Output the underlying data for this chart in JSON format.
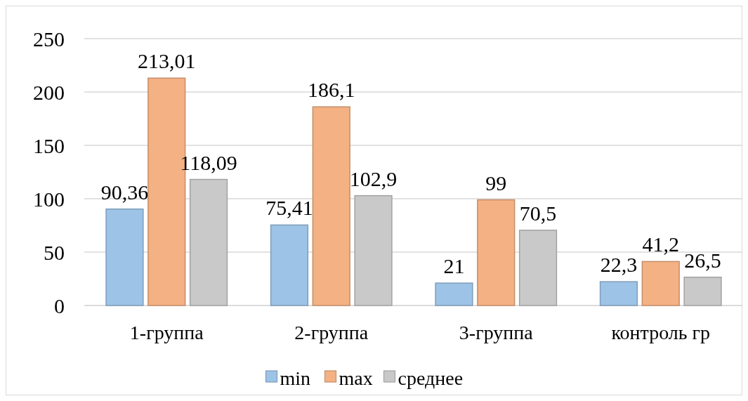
{
  "chart_data": {
    "type": "bar",
    "categories": [
      "1-группа",
      "2-группа",
      "3-группа",
      "контроль гр"
    ],
    "series": [
      {
        "name": "min",
        "color": "#9dc3e6",
        "values": [
          90.36,
          75.41,
          21,
          22.3
        ],
        "value_labels": [
          "90,36",
          "75,41",
          "21",
          "22,3"
        ]
      },
      {
        "name": "max",
        "color": "#f4b183",
        "values": [
          213.01,
          186.1,
          99,
          41.2
        ],
        "value_labels": [
          "213,01",
          "186,1",
          "99",
          "41,2"
        ]
      },
      {
        "name": "среднее",
        "color": "#c9c9c9",
        "values": [
          118.09,
          102.9,
          70.5,
          26.5
        ],
        "value_labels": [
          "118,09",
          "102,9",
          "70,5",
          "26,5"
        ]
      }
    ],
    "ylim": [
      0,
      250
    ],
    "yticks": [
      0,
      50,
      100,
      150,
      200,
      250
    ],
    "grid": "y",
    "legend": "bottom"
  }
}
